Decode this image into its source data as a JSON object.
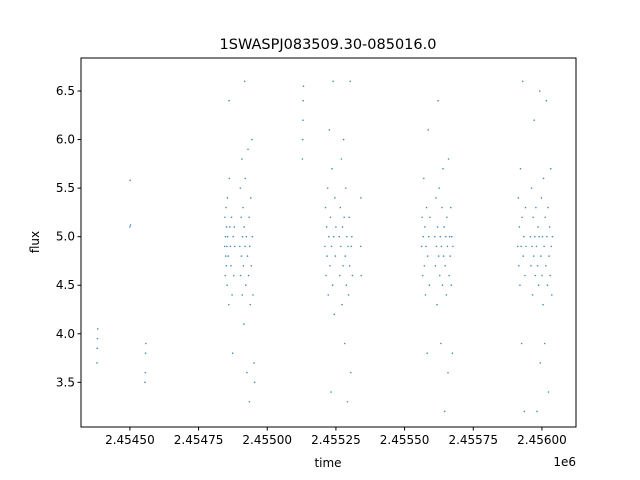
{
  "chart_data": {
    "type": "scatter",
    "title": "1SWASPJ083509.30-085016.0",
    "xlabel": "time",
    "ylabel": "flux",
    "x_offset_label": "1e6",
    "xlim": [
      2454322,
      2456124
    ],
    "ylim": [
      3.04,
      6.84
    ],
    "x_ticks": [
      2454500,
      2454750,
      2455000,
      2455250,
      2455500,
      2455750,
      2456000
    ],
    "x_tick_labels": [
      "2.45450",
      "2.45475",
      "2.45500",
      "2.45525",
      "2.45550",
      "2.45575",
      "2.45600"
    ],
    "y_ticks": [
      3.5,
      4.0,
      4.5,
      5.0,
      5.5,
      6.0,
      6.5
    ],
    "y_tick_labels": [
      "3.5",
      "4.0",
      "4.5",
      "5.0",
      "5.5",
      "6.0",
      "6.5"
    ],
    "grid": false,
    "color": "#1f77b4",
    "points": [
      [
        2454380,
        3.7
      ],
      [
        2454381,
        3.85
      ],
      [
        2454382,
        3.95
      ],
      [
        2454383,
        4.05
      ],
      [
        2454500,
        5.1
      ],
      [
        2454501,
        5.58
      ],
      [
        2454502,
        5.12
      ],
      [
        2454555,
        3.5
      ],
      [
        2454556,
        3.6
      ],
      [
        2454557,
        3.8
      ],
      [
        2454558,
        3.9
      ],
      [
        2454845,
        4.9
      ],
      [
        2454846,
        5.2
      ],
      [
        2454847,
        4.6
      ],
      [
        2454848,
        5.0
      ],
      [
        2454849,
        4.8
      ],
      [
        2454850,
        5.3
      ],
      [
        2454851,
        4.7
      ],
      [
        2454852,
        5.1
      ],
      [
        2454853,
        4.9
      ],
      [
        2454854,
        4.5
      ],
      [
        2454855,
        5.4
      ],
      [
        2454856,
        5.0
      ],
      [
        2454858,
        4.8
      ],
      [
        2454860,
        4.3
      ],
      [
        2454861,
        6.4
      ],
      [
        2454862,
        5.6
      ],
      [
        2454864,
        5.1
      ],
      [
        2454866,
        4.9
      ],
      [
        2454868,
        4.7
      ],
      [
        2454870,
        5.2
      ],
      [
        2454872,
        4.4
      ],
      [
        2454874,
        3.8
      ],
      [
        2454876,
        5.0
      ],
      [
        2454878,
        4.6
      ],
      [
        2454880,
        5.1
      ],
      [
        2454882,
        4.9
      ],
      [
        2454900,
        4.9
      ],
      [
        2454902,
        5.5
      ],
      [
        2454903,
        4.6
      ],
      [
        2454905,
        5.2
      ],
      [
        2454906,
        4.8
      ],
      [
        2454908,
        5.8
      ],
      [
        2454909,
        4.4
      ],
      [
        2454910,
        5.0
      ],
      [
        2454912,
        5.3
      ],
      [
        2454913,
        4.7
      ],
      [
        2454915,
        4.1
      ],
      [
        2454916,
        5.1
      ],
      [
        2454918,
        6.6
      ],
      [
        2454919,
        4.9
      ],
      [
        2454920,
        5.6
      ],
      [
        2454922,
        4.5
      ],
      [
        2454924,
        5.0
      ],
      [
        2454926,
        3.6
      ],
      [
        2454928,
        4.8
      ],
      [
        2454930,
        5.9
      ],
      [
        2454932,
        4.6
      ],
      [
        2454934,
        5.2
      ],
      [
        2454935,
        3.3
      ],
      [
        2454936,
        4.9
      ],
      [
        2454938,
        4.3
      ],
      [
        2454940,
        5.4
      ],
      [
        2454942,
        4.7
      ],
      [
        2454944,
        6.0
      ],
      [
        2454946,
        5.0
      ],
      [
        2454948,
        4.4
      ],
      [
        2454952,
        3.7
      ],
      [
        2454954,
        3.5
      ],
      [
        2455128,
        5.8
      ],
      [
        2455129,
        6.0
      ],
      [
        2455130,
        6.2
      ],
      [
        2455131,
        6.4
      ],
      [
        2455132,
        6.55
      ],
      [
        2455210,
        4.9
      ],
      [
        2455212,
        5.3
      ],
      [
        2455214,
        4.6
      ],
      [
        2455216,
        5.1
      ],
      [
        2455218,
        4.8
      ],
      [
        2455220,
        5.5
      ],
      [
        2455222,
        4.4
      ],
      [
        2455224,
        5.0
      ],
      [
        2455226,
        6.1
      ],
      [
        2455228,
        4.7
      ],
      [
        2455230,
        5.2
      ],
      [
        2455232,
        3.4
      ],
      [
        2455234,
        4.9
      ],
      [
        2455236,
        5.7
      ],
      [
        2455238,
        4.5
      ],
      [
        2455240,
        6.6
      ],
      [
        2455242,
        5.0
      ],
      [
        2455244,
        4.2
      ],
      [
        2455246,
        5.4
      ],
      [
        2455248,
        4.8
      ],
      [
        2455250,
        5.1
      ],
      [
        2455262,
        5.0
      ],
      [
        2455264,
        4.6
      ],
      [
        2455266,
        5.3
      ],
      [
        2455268,
        4.9
      ],
      [
        2455270,
        5.8
      ],
      [
        2455272,
        4.3
      ],
      [
        2455274,
        5.1
      ],
      [
        2455276,
        4.7
      ],
      [
        2455278,
        6.0
      ],
      [
        2455280,
        5.2
      ],
      [
        2455282,
        3.9
      ],
      [
        2455284,
        4.8
      ],
      [
        2455286,
        5.5
      ],
      [
        2455288,
        4.5
      ],
      [
        2455290,
        5.0
      ],
      [
        2455292,
        3.3
      ],
      [
        2455294,
        4.9
      ],
      [
        2455296,
        4.4
      ],
      [
        2455298,
        5.2
      ],
      [
        2455300,
        4.7
      ],
      [
        2455302,
        6.6
      ],
      [
        2455304,
        3.6
      ],
      [
        2455306,
        4.9
      ],
      [
        2455308,
        5.0
      ],
      [
        2455310,
        4.6
      ],
      [
        2455340,
        4.9
      ],
      [
        2455341,
        5.4
      ],
      [
        2455342,
        4.6
      ],
      [
        2455562,
        4.9
      ],
      [
        2455564,
        5.2
      ],
      [
        2455566,
        4.6
      ],
      [
        2455568,
        5.0
      ],
      [
        2455570,
        5.6
      ],
      [
        2455572,
        4.7
      ],
      [
        2455574,
        5.1
      ],
      [
        2455576,
        4.4
      ],
      [
        2455578,
        4.9
      ],
      [
        2455580,
        5.3
      ],
      [
        2455582,
        3.8
      ],
      [
        2455584,
        4.8
      ],
      [
        2455586,
        6.1
      ],
      [
        2455588,
        5.0
      ],
      [
        2455590,
        4.5
      ],
      [
        2455592,
        5.2
      ],
      [
        2455610,
        5.0
      ],
      [
        2455612,
        4.7
      ],
      [
        2455614,
        5.4
      ],
      [
        2455616,
        4.9
      ],
      [
        2455618,
        4.3
      ],
      [
        2455620,
        5.1
      ],
      [
        2455622,
        6.4
      ],
      [
        2455624,
        4.8
      ],
      [
        2455626,
        5.5
      ],
      [
        2455628,
        4.6
      ],
      [
        2455630,
        5.0
      ],
      [
        2455632,
        3.9
      ],
      [
        2455634,
        4.9
      ],
      [
        2455636,
        5.3
      ],
      [
        2455638,
        4.5
      ],
      [
        2455640,
        5.7
      ],
      [
        2455642,
        4.8
      ],
      [
        2455644,
        5.1
      ],
      [
        2455646,
        3.2
      ],
      [
        2455648,
        4.7
      ],
      [
        2455650,
        5.0
      ],
      [
        2455652,
        4.4
      ],
      [
        2455654,
        5.2
      ],
      [
        2455656,
        4.9
      ],
      [
        2455658,
        3.6
      ],
      [
        2455660,
        5.8
      ],
      [
        2455662,
        4.6
      ],
      [
        2455664,
        5.0
      ],
      [
        2455666,
        4.8
      ],
      [
        2455668,
        5.3
      ],
      [
        2455670,
        4.5
      ],
      [
        2455672,
        5.0
      ],
      [
        2455674,
        3.8
      ],
      [
        2455676,
        4.9
      ],
      [
        2455912,
        4.9
      ],
      [
        2455914,
        5.4
      ],
      [
        2455916,
        4.7
      ],
      [
        2455918,
        5.1
      ],
      [
        2455920,
        4.5
      ],
      [
        2455922,
        5.7
      ],
      [
        2455924,
        4.9
      ],
      [
        2455926,
        3.9
      ],
      [
        2455928,
        5.2
      ],
      [
        2455930,
        6.6
      ],
      [
        2455932,
        4.8
      ],
      [
        2455934,
        5.0
      ],
      [
        2455936,
        3.2
      ],
      [
        2455938,
        4.6
      ],
      [
        2455940,
        5.3
      ],
      [
        2455942,
        4.9
      ],
      [
        2455958,
        5.0
      ],
      [
        2455960,
        4.7
      ],
      [
        2455962,
        5.5
      ],
      [
        2455964,
        4.9
      ],
      [
        2455966,
        4.4
      ],
      [
        2455968,
        5.2
      ],
      [
        2455970,
        4.8
      ],
      [
        2455972,
        6.2
      ],
      [
        2455974,
        5.0
      ],
      [
        2455976,
        4.6
      ],
      [
        2455978,
        5.3
      ],
      [
        2455980,
        4.9
      ],
      [
        2455982,
        3.2
      ],
      [
        2455984,
        4.7
      ],
      [
        2455986,
        5.1
      ],
      [
        2455988,
        4.5
      ],
      [
        2455990,
        5.0
      ],
      [
        2455992,
        6.5
      ],
      [
        2455994,
        3.7
      ],
      [
        2455996,
        4.8
      ],
      [
        2455998,
        5.4
      ],
      [
        2456000,
        4.6
      ],
      [
        2456002,
        5.0
      ],
      [
        2456004,
        4.3
      ],
      [
        2456006,
        5.6
      ],
      [
        2456008,
        4.9
      ],
      [
        2456010,
        3.9
      ],
      [
        2456012,
        5.2
      ],
      [
        2456014,
        4.7
      ],
      [
        2456016,
        6.4
      ],
      [
        2456018,
        5.0
      ],
      [
        2456020,
        4.5
      ],
      [
        2456022,
        5.3
      ],
      [
        2456024,
        3.4
      ],
      [
        2456026,
        4.8
      ],
      [
        2456028,
        5.1
      ],
      [
        2456030,
        4.6
      ],
      [
        2456032,
        5.7
      ],
      [
        2456034,
        4.9
      ],
      [
        2456036,
        4.4
      ],
      [
        2456038,
        5.0
      ]
    ]
  }
}
